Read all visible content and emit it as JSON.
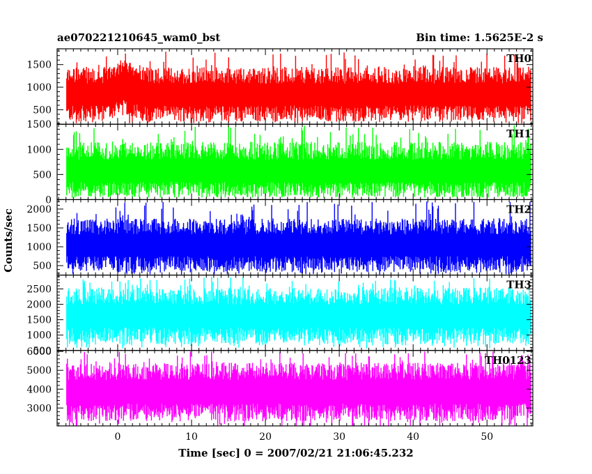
{
  "chart_data": {
    "type": "line",
    "title": "ae070221210645_wam0_bst",
    "subtitle": "Bin time: 1.5625E-2 s",
    "xlabel": "Time [sec] 0 = 2007/02/21 21:06:45.232",
    "ylabel": "Counts/sec",
    "xlim": [
      -8.2,
      56.2
    ],
    "x_ticks": [
      0,
      10,
      20,
      30,
      40,
      50
    ],
    "x_tick_labels": [
      "0",
      "10",
      "20",
      "30",
      "40",
      "50"
    ],
    "data_x_range": [
      -6.9,
      56.0
    ],
    "bin_time_s": 0.015625,
    "grid": false,
    "panels": [
      {
        "name": "TH0",
        "color": "#ff0000",
        "ylim": [
          180,
          1850
        ],
        "y_ticks": [
          500,
          1000,
          1500
        ],
        "y_tick_labels": [
          "500",
          "1000",
          "1500"
        ],
        "mean": 880,
        "low": 240,
        "high": 1450,
        "peak": 1800,
        "burst": {
          "start": -1.5,
          "end": 3.5,
          "boost": 220
        }
      },
      {
        "name": "TH1",
        "color": "#00ff00",
        "ylim": [
          0,
          1500
        ],
        "y_ticks": [
          0,
          500,
          1000,
          1500
        ],
        "y_tick_labels": [
          "0",
          "500",
          "1000",
          "1500"
        ],
        "mean": 600,
        "low": 50,
        "high": 1150,
        "peak": 1480,
        "burst": null
      },
      {
        "name": "TH2",
        "color": "#0000ff",
        "ylim": [
          250,
          2250
        ],
        "y_ticks": [
          500,
          1000,
          1500,
          2000
        ],
        "y_tick_labels": [
          "500",
          "1000",
          "1500",
          "2000"
        ],
        "mean": 1100,
        "low": 330,
        "high": 1750,
        "peak": 2200,
        "burst": null
      },
      {
        "name": "TH3",
        "color": "#00ffff",
        "ylim": [
          500,
          2950
        ],
        "y_ticks": [
          500,
          1000,
          1500,
          2000,
          2500
        ],
        "y_tick_labels": [
          "500",
          "1000",
          "1500",
          "2000",
          "2500"
        ],
        "mean": 1700,
        "low": 700,
        "high": 2550,
        "peak": 2900,
        "burst": null
      },
      {
        "name": "TH0123",
        "color": "#ff00ff",
        "ylim": [
          2050,
          6050
        ],
        "y_ticks": [
          3000,
          4000,
          5000,
          6000
        ],
        "y_tick_labels": [
          "3000",
          "4000",
          "5000",
          "6000"
        ],
        "mean": 4000,
        "low": 2300,
        "high": 5400,
        "peak": 6000,
        "burst": null
      }
    ]
  }
}
